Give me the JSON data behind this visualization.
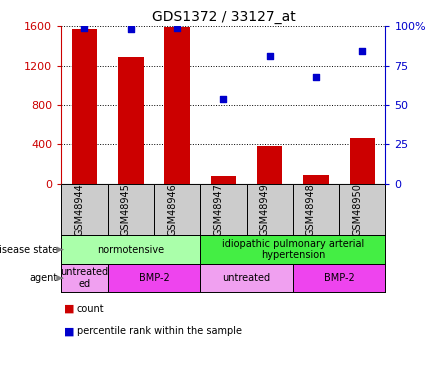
{
  "title": "GDS1372 / 33127_at",
  "samples": [
    "GSM48944",
    "GSM48945",
    "GSM48946",
    "GSM48947",
    "GSM48949",
    "GSM48948",
    "GSM48950"
  ],
  "counts": [
    1570,
    1290,
    1590,
    80,
    380,
    90,
    460
  ],
  "percentile_ranks": [
    99,
    98,
    99,
    54,
    81,
    68,
    84
  ],
  "ylim_left": [
    0,
    1600
  ],
  "ylim_right": [
    0,
    100
  ],
  "yticks_left": [
    0,
    400,
    800,
    1200,
    1600
  ],
  "yticks_right": [
    0,
    25,
    50,
    75,
    100
  ],
  "yticklabels_left": [
    "0",
    "400",
    "800",
    "1200",
    "1600"
  ],
  "yticklabels_right": [
    "0",
    "25",
    "50",
    "75",
    "100%"
  ],
  "bar_color": "#cc0000",
  "dot_color": "#0000cc",
  "bar_width": 0.55,
  "disease_state_groups": [
    {
      "label": "normotensive",
      "start": 0,
      "end": 3,
      "color": "#aaffaa"
    },
    {
      "label": "idiopathic pulmonary arterial\nhypertension",
      "start": 3,
      "end": 7,
      "color": "#44ee44"
    }
  ],
  "agent_groups": [
    {
      "label": "untreated\ned",
      "start": 0,
      "end": 1,
      "color": "#f0a0f0"
    },
    {
      "label": "BMP-2",
      "start": 1,
      "end": 3,
      "color": "#ee44ee"
    },
    {
      "label": "untreated",
      "start": 3,
      "end": 5,
      "color": "#f0a0f0"
    },
    {
      "label": "BMP-2",
      "start": 5,
      "end": 7,
      "color": "#ee44ee"
    }
  ],
  "legend_count_color": "#cc0000",
  "legend_dot_color": "#0000cc",
  "tick_label_color_left": "#cc0000",
  "tick_label_color_right": "#0000cc",
  "xtick_bg_color": "#cccccc",
  "fig_width": 4.38,
  "fig_height": 3.75,
  "dpi": 100
}
